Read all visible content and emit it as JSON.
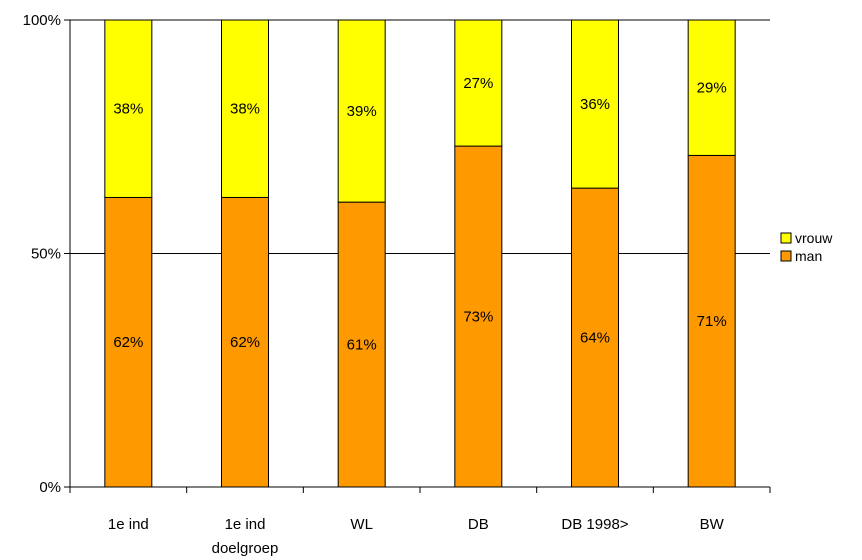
{
  "chart_data": {
    "type": "bar",
    "stacked": true,
    "percent_stacked": true,
    "categories": [
      "1e ind",
      "1e ind\ndoelgroep",
      "WL",
      "DB",
      "DB 1998>",
      "BW"
    ],
    "series": [
      {
        "name": "man",
        "values": [
          62,
          62,
          61,
          73,
          64,
          71
        ],
        "labels": [
          "62%",
          "62%",
          "61%",
          "73%",
          "64%",
          "71%"
        ],
        "color": "#ff9900"
      },
      {
        "name": "vrouw",
        "values": [
          38,
          38,
          39,
          27,
          36,
          29
        ],
        "labels": [
          "38%",
          "38%",
          "39%",
          "27%",
          "36%",
          "29%"
        ],
        "color": "#ffff00"
      }
    ],
    "ylim": [
      0,
      100
    ],
    "y_ticks": [
      0,
      50,
      100
    ],
    "y_tick_labels": [
      "0%",
      "50%",
      "100%"
    ],
    "grid": "horizontal",
    "legend": {
      "position": "right",
      "entries": [
        "vrouw",
        "man"
      ]
    },
    "title": "",
    "xlabel": "",
    "ylabel": ""
  }
}
